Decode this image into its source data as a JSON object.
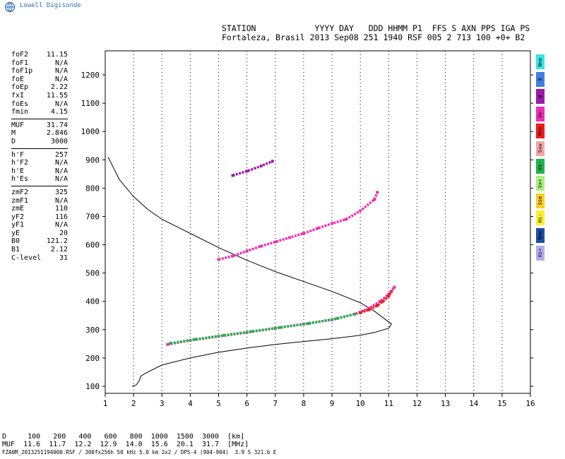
{
  "logo": {
    "text": "Lowell Digisonde",
    "icon": "globe-icon",
    "color": "#2a6fb0"
  },
  "header": {
    "line1": "STATION            YYYY DAY   DDD HHMM P1  FFS S AXN PPS IGA PS",
    "line2": "Fortaleza, Brasil 2013 Sep08 251 1940 RSF 005 2 713 100 +0+ B2"
  },
  "params": [
    [
      [
        "foF2",
        "11.15"
      ],
      [
        "foF1",
        "N/A"
      ],
      [
        "foF1p",
        "N/A"
      ],
      [
        "foE",
        "N/A"
      ],
      [
        "foEp",
        "2.22"
      ],
      [
        "fxI",
        "11.55"
      ],
      [
        "foEs",
        "N/A"
      ],
      [
        "fmin",
        "4.15"
      ]
    ],
    [
      [
        "MUF",
        "31.74"
      ],
      [
        "M",
        "2.846"
      ],
      [
        "D",
        "3000"
      ]
    ],
    [
      [
        "h'F",
        "257"
      ],
      [
        "h'F2",
        "N/A"
      ],
      [
        "h'E",
        "N/A"
      ],
      [
        "h'Es",
        "N/A"
      ]
    ],
    [
      [
        "zmF2",
        "325"
      ],
      [
        "zmF1",
        "N/A"
      ],
      [
        "zmE",
        "110"
      ],
      [
        "yF2",
        "116"
      ],
      [
        "yF1",
        "N/A"
      ],
      [
        "yE",
        "20"
      ],
      [
        "B0",
        "121.2"
      ],
      [
        "B1",
        "2.12"
      ],
      [
        "C-level",
        "31"
      ]
    ]
  ],
  "legend": [
    {
      "label": "Nne",
      "color": "#33e5e5"
    },
    {
      "label": "E",
      "color": "#3f7fe0"
    },
    {
      "label": "W",
      "color": "#9b1aa8"
    },
    {
      "label": "Vo-",
      "color": "#ee2fb4"
    },
    {
      "label": "Vo+",
      "color": "#ee1c1c"
    },
    {
      "label": "Ssw",
      "color": "#f2a6a6"
    },
    {
      "label": "Vx-",
      "color": "#22b24a"
    },
    {
      "label": "Vx+",
      "color": "#a8ef80"
    },
    {
      "label": "Sse",
      "color": "#f5cf28"
    },
    {
      "label": "Hi-",
      "color": "#f8f030"
    },
    {
      "label": "Nnw",
      "color": "#1d4ea6"
    },
    {
      "label": "Hi+",
      "color": "#b1abef"
    }
  ],
  "footer": {
    "line1": "D     100   200   400   600   800  1000  1500  3000  [km]",
    "line2": "MUF  11.6  11.7  12.2  12.9  14.0  15.6  20.1  31.7  [MHz]",
    "line3": "FZA0M_2013251194000.RSF / 300fx256h 50 kHz 5.0 km 2x2 / DPS-4 (904-904)  3.9 S 321.6 E"
  },
  "chart_data": {
    "type": "scatter",
    "title": "",
    "xlabel": "",
    "ylabel": "",
    "xlim": [
      1,
      16
    ],
    "ylim": [
      75,
      1285
    ],
    "x_ticks": [
      1,
      2,
      3,
      4,
      5,
      6,
      7,
      8,
      9,
      10,
      11,
      12,
      13,
      14,
      15,
      16
    ],
    "y_ticks": [
      100,
      200,
      300,
      400,
      500,
      600,
      700,
      800,
      900,
      1000,
      1100,
      1200
    ],
    "grid": "dotted vertical",
    "series": [
      {
        "name": "",
        "type": "line",
        "color": "#000000",
        "points": [
          [
            1.1,
            910
          ],
          [
            1.5,
            830
          ],
          [
            2.0,
            770
          ],
          [
            2.5,
            725
          ],
          [
            3.0,
            690
          ],
          [
            4.0,
            640
          ],
          [
            5.0,
            590
          ],
          [
            6.0,
            545
          ],
          [
            7.0,
            505
          ],
          [
            8.0,
            470
          ],
          [
            9.0,
            435
          ],
          [
            10.0,
            395
          ],
          [
            10.5,
            365
          ],
          [
            10.9,
            335
          ],
          [
            11.1,
            320
          ],
          [
            11.0,
            305
          ],
          [
            10.5,
            290
          ],
          [
            10.0,
            280
          ],
          [
            9.0,
            268
          ],
          [
            8.0,
            258
          ],
          [
            7.0,
            248
          ],
          [
            6.0,
            235
          ],
          [
            5.0,
            220
          ],
          [
            4.0,
            200
          ],
          [
            3.0,
            175
          ],
          [
            2.4,
            145
          ],
          [
            2.25,
            135
          ],
          [
            2.2,
            120
          ],
          [
            2.1,
            105
          ],
          [
            1.95,
            100
          ]
        ]
      },
      {
        "name": "",
        "type": "trace",
        "color": "#ee2fb4",
        "points": [
          [
            3.2,
            248
          ],
          [
            4.0,
            262
          ],
          [
            5.0,
            276
          ],
          [
            6.0,
            290
          ],
          [
            7.0,
            305
          ],
          [
            8.0,
            320
          ],
          [
            9.0,
            335
          ],
          [
            9.8,
            355
          ],
          [
            10.3,
            375
          ],
          [
            10.7,
            400
          ],
          [
            11.0,
            425
          ],
          [
            11.2,
            450
          ]
        ]
      },
      {
        "name": "",
        "type": "trace",
        "color": "#22b24a",
        "points": [
          [
            3.3,
            252
          ],
          [
            4.2,
            266
          ],
          [
            5.2,
            280
          ],
          [
            6.2,
            294
          ],
          [
            7.2,
            308
          ],
          [
            8.2,
            322
          ],
          [
            9.2,
            340
          ],
          [
            10.0,
            360
          ]
        ]
      },
      {
        "name": "",
        "type": "trace",
        "color": "#ee1c1c",
        "points": [
          [
            10.0,
            360
          ],
          [
            10.3,
            370
          ],
          [
            10.6,
            385
          ],
          [
            10.8,
            400
          ],
          [
            11.0,
            418
          ],
          [
            11.1,
            435
          ]
        ]
      },
      {
        "name": "",
        "type": "trace",
        "color": "#ee2fb4",
        "points": [
          [
            5.0,
            548
          ],
          [
            5.5,
            560
          ],
          [
            6.0,
            578
          ],
          [
            6.5,
            595
          ],
          [
            7.0,
            610
          ],
          [
            7.5,
            625
          ],
          [
            8.0,
            640
          ],
          [
            8.5,
            658
          ],
          [
            9.0,
            675
          ],
          [
            9.5,
            690
          ],
          [
            10.0,
            720
          ],
          [
            10.5,
            760
          ],
          [
            10.6,
            785
          ]
        ]
      },
      {
        "name": "",
        "type": "trace",
        "color": "#9b1aa8",
        "points": [
          [
            5.5,
            845
          ],
          [
            6.0,
            860
          ],
          [
            6.5,
            878
          ],
          [
            6.9,
            895
          ]
        ]
      }
    ]
  }
}
